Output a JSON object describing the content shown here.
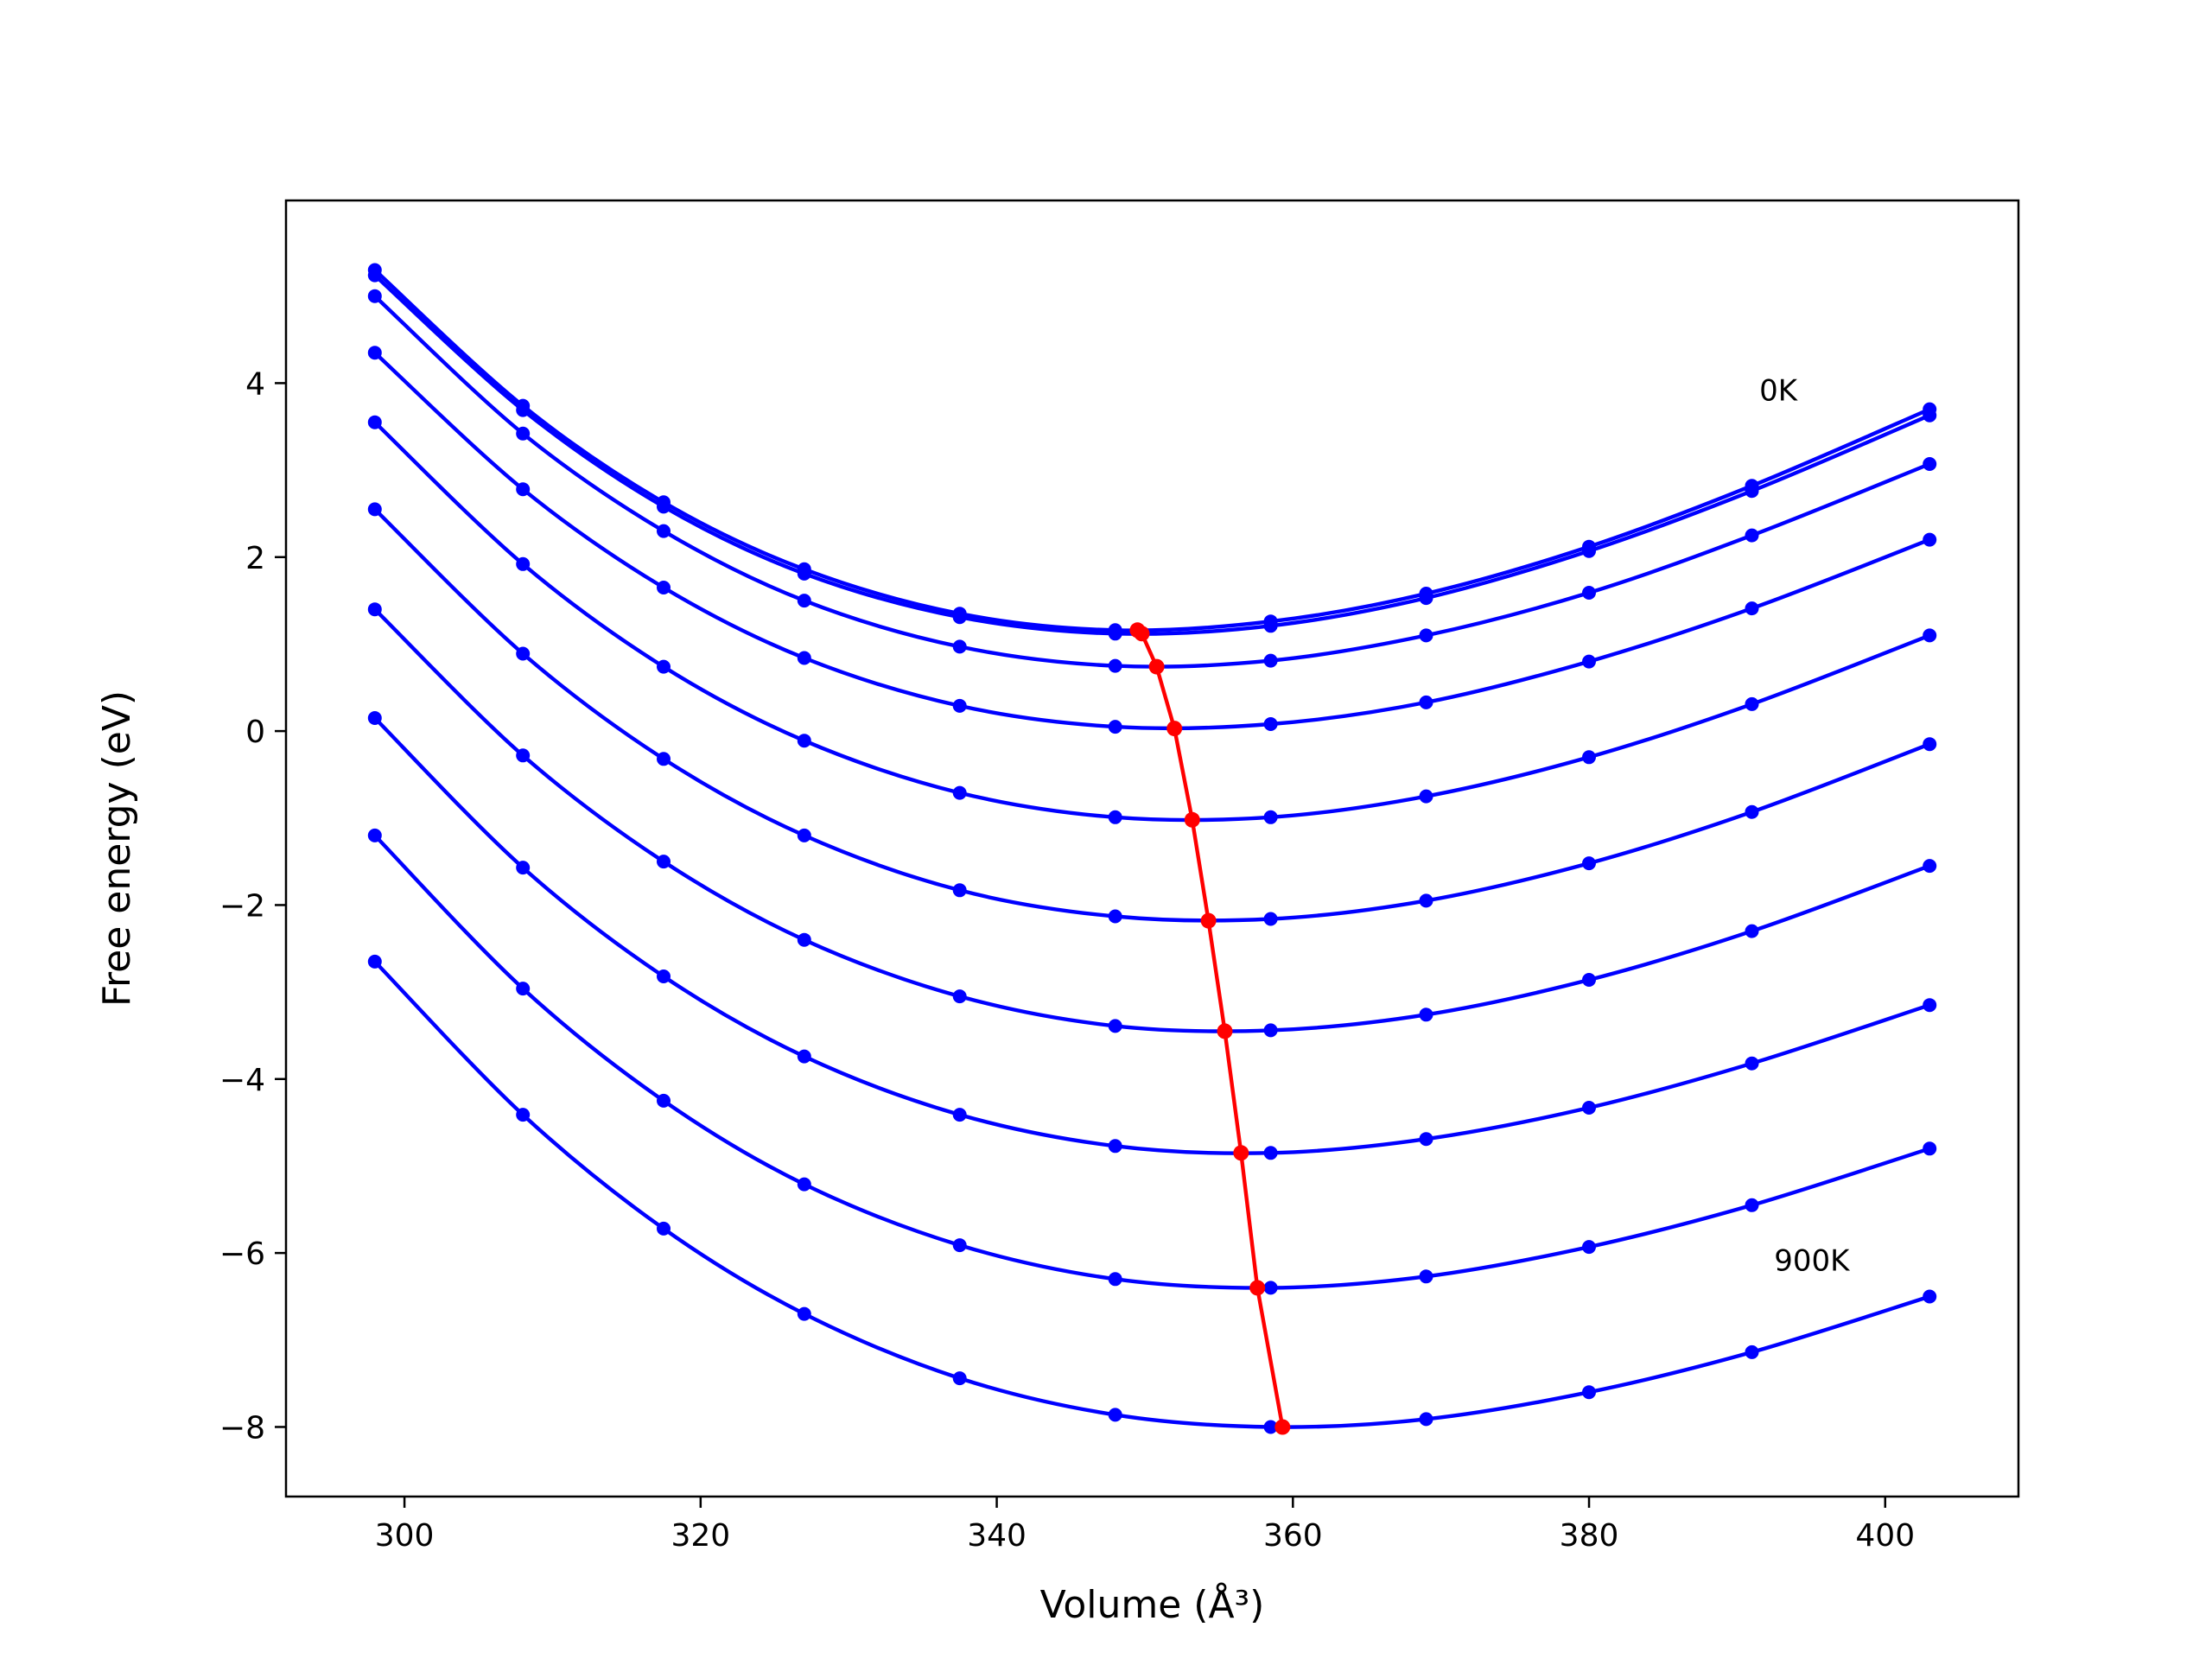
{
  "chart_data": {
    "type": "line",
    "title": "",
    "xlabel": "Volume (Å³)",
    "ylabel": "Free energy (eV)",
    "xlim": [
      292,
      409
    ],
    "ylim": [
      -8.8,
      6.1
    ],
    "xticks": [
      300,
      320,
      340,
      360,
      380,
      400
    ],
    "yticks": [
      -8,
      -6,
      -4,
      -2,
      0,
      2,
      4
    ],
    "grid": false,
    "legend_position": "none",
    "series_color": "#0000ff",
    "marker": "circle",
    "x_volumes": [
      298,
      308,
      317.5,
      327,
      337.5,
      348,
      358.5,
      369,
      380,
      391,
      403
    ],
    "series": [
      {
        "name": "0K",
        "temperature_K": 0,
        "values": [
          5.3,
          3.74,
          2.63,
          1.86,
          1.35,
          1.16,
          1.26,
          1.58,
          2.12,
          2.82,
          3.7
        ]
      },
      {
        "name": "100K",
        "temperature_K": 100,
        "values": [
          5.24,
          3.69,
          2.58,
          1.81,
          1.31,
          1.12,
          1.21,
          1.53,
          2.07,
          2.76,
          3.63
        ]
      },
      {
        "name": "200K",
        "temperature_K": 200,
        "values": [
          5.0,
          3.42,
          2.3,
          1.5,
          0.97,
          0.75,
          0.81,
          1.1,
          1.59,
          2.25,
          3.07
        ]
      },
      {
        "name": "300K",
        "temperature_K": 300,
        "values": [
          4.35,
          2.78,
          1.65,
          0.84,
          0.29,
          0.05,
          0.08,
          0.33,
          0.8,
          1.41,
          2.2
        ]
      },
      {
        "name": "400K",
        "temperature_K": 400,
        "values": [
          3.55,
          1.92,
          0.74,
          -0.11,
          -0.71,
          -0.99,
          -0.99,
          -0.75,
          -0.3,
          0.31,
          1.1
        ]
      },
      {
        "name": "500K",
        "temperature_K": 500,
        "values": [
          2.55,
          0.89,
          -0.32,
          -1.2,
          -1.83,
          -2.13,
          -2.16,
          -1.95,
          -1.52,
          -0.93,
          -0.15
        ]
      },
      {
        "name": "600K",
        "temperature_K": 600,
        "values": [
          1.4,
          -0.28,
          -1.5,
          -2.4,
          -3.05,
          -3.39,
          -3.44,
          -3.26,
          -2.86,
          -2.3,
          -1.55
        ]
      },
      {
        "name": "700K",
        "temperature_K": 700,
        "values": [
          0.15,
          -1.57,
          -2.82,
          -3.74,
          -4.41,
          -4.77,
          -4.85,
          -4.69,
          -4.33,
          -3.82,
          -3.15
        ]
      },
      {
        "name": "800K",
        "temperature_K": 800,
        "values": [
          -1.2,
          -2.96,
          -4.25,
          -5.21,
          -5.91,
          -6.3,
          -6.4,
          -6.27,
          -5.93,
          -5.45,
          -4.8
        ]
      },
      {
        "name": "900K",
        "temperature_K": 900,
        "values": [
          -2.65,
          -4.41,
          -5.72,
          -6.7,
          -7.44,
          -7.86,
          -8.0,
          -7.91,
          -7.6,
          -7.14,
          -6.5
        ]
      }
    ],
    "minima_line": {
      "label": "equilibrium-volume-vs-temperature",
      "color": "#ff0000",
      "points": [
        [
          349.5,
          1.16
        ],
        [
          349.8,
          1.12
        ],
        [
          350.8,
          0.74
        ],
        [
          352.0,
          0.03
        ],
        [
          353.2,
          -1.02
        ],
        [
          354.3,
          -2.18
        ],
        [
          355.4,
          -3.45
        ],
        [
          356.5,
          -4.85
        ],
        [
          357.6,
          -6.4
        ],
        [
          359.3,
          -8.0
        ]
      ]
    },
    "annotations": [
      {
        "id": "0K",
        "text": "0K",
        "x": 391.5,
        "y": 3.8
      },
      {
        "id": "900K",
        "text": "900K",
        "x": 392.5,
        "y": -6.2
      }
    ]
  }
}
